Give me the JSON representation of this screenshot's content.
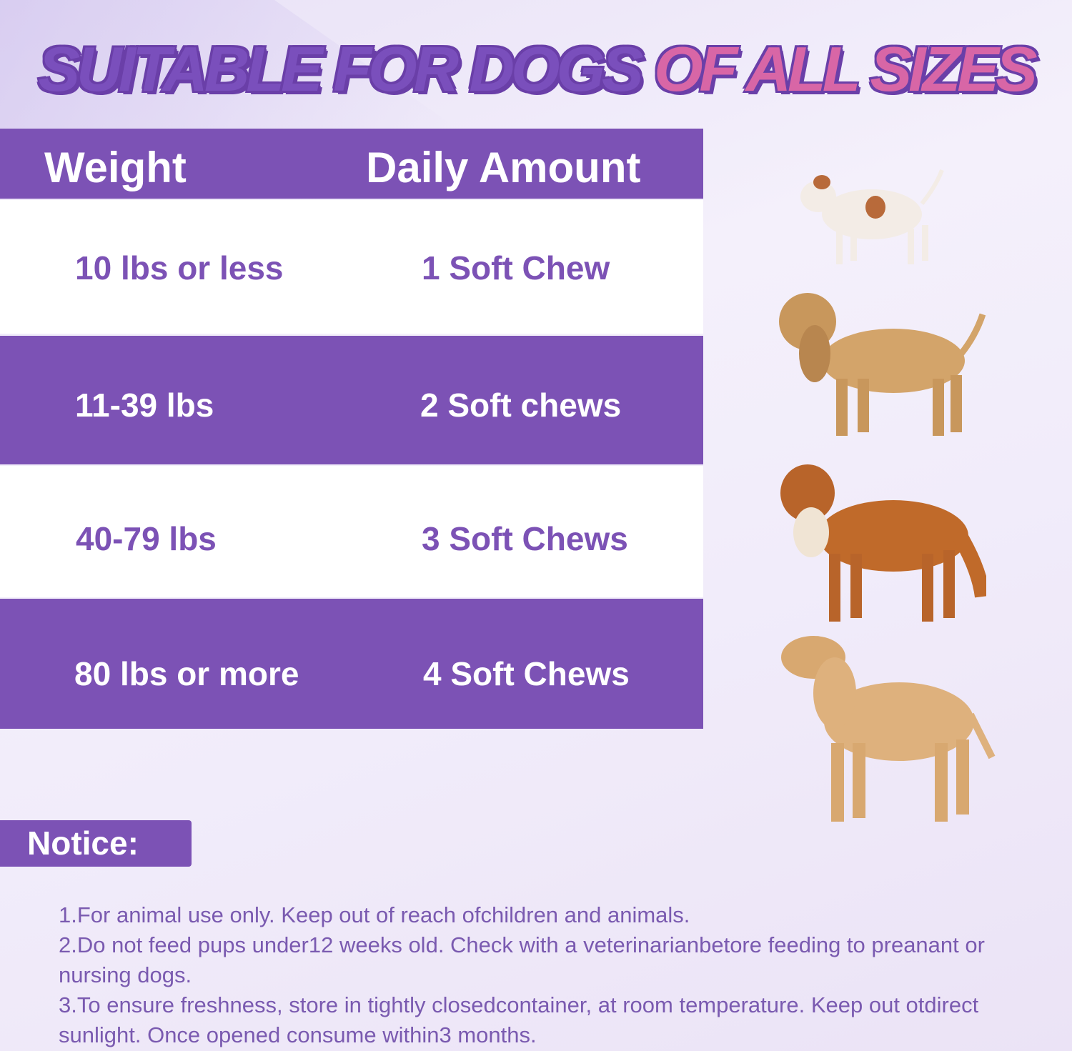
{
  "title": {
    "part1": "SUITABLE FOR DOGS",
    "part2": "OF ALL SIZES"
  },
  "table": {
    "headers": {
      "weight": "Weight",
      "amount": "Daily Amount"
    },
    "rows": [
      {
        "weight": "10 lbs or less",
        "amount": "1 Soft Chew"
      },
      {
        "weight": "11-39 lbs",
        "amount": "2 Soft chews"
      },
      {
        "weight": "40-79 lbs",
        "amount": "3 Soft Chews"
      },
      {
        "weight": "80 lbs or more",
        "amount": "4 Soft Chews"
      }
    ]
  },
  "notice": {
    "label": "Notice:",
    "items": [
      "1.For animal use only. Keep out of reach ofchildren and animals.",
      "2.Do not feed pups under12 weeks old. Check with a veterinarianbetore feeding to preanant or nursing dogs.",
      "3.To ensure freshness, store in tightly closedcontainer, at room temperature. Keep out otdirect sunlight. Once opened consume within3 months."
    ]
  },
  "colors": {
    "purple": "#7c52b5",
    "pink": "#d866a6",
    "text_purple": "#7a5ab0"
  },
  "images": [
    "small-white-brown-puppy",
    "cocker-spaniel-puppy",
    "red-retriever",
    "yellow-labrador"
  ]
}
